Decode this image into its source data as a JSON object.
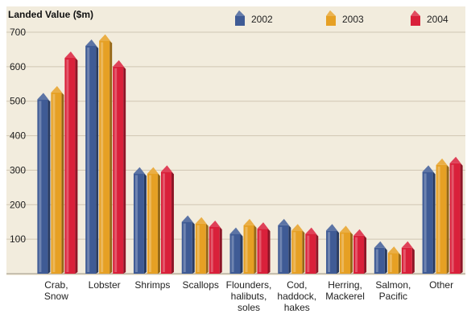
{
  "chart_data": {
    "type": "bar",
    "title": "Landed Value ($m)",
    "ylim": [
      0,
      700
    ],
    "yticks": [
      100,
      200,
      300,
      400,
      500,
      600,
      700
    ],
    "grid": true,
    "legend_position": "top",
    "categories": [
      [
        "Crab,",
        "Snow"
      ],
      [
        "Lobster"
      ],
      [
        "Shrimps"
      ],
      [
        "Scallops"
      ],
      [
        "Flounders,",
        "halibuts,",
        "soles"
      ],
      [
        "Cod,",
        "haddock,",
        "hakes"
      ],
      [
        "Herring,",
        "Mackerel"
      ],
      [
        "Salmon,",
        "Pacific"
      ],
      [
        "Other"
      ]
    ],
    "series": [
      {
        "name": "2002",
        "color": "#3f5b95",
        "values": [
          510,
          665,
          295,
          155,
          120,
          145,
          130,
          80,
          300
        ]
      },
      {
        "name": "2003",
        "color": "#e6a024",
        "values": [
          530,
          680,
          295,
          150,
          145,
          130,
          125,
          65,
          320
        ]
      },
      {
        "name": "2004",
        "color": "#d9203a",
        "values": [
          630,
          605,
          300,
          140,
          135,
          120,
          115,
          80,
          325
        ]
      }
    ]
  }
}
